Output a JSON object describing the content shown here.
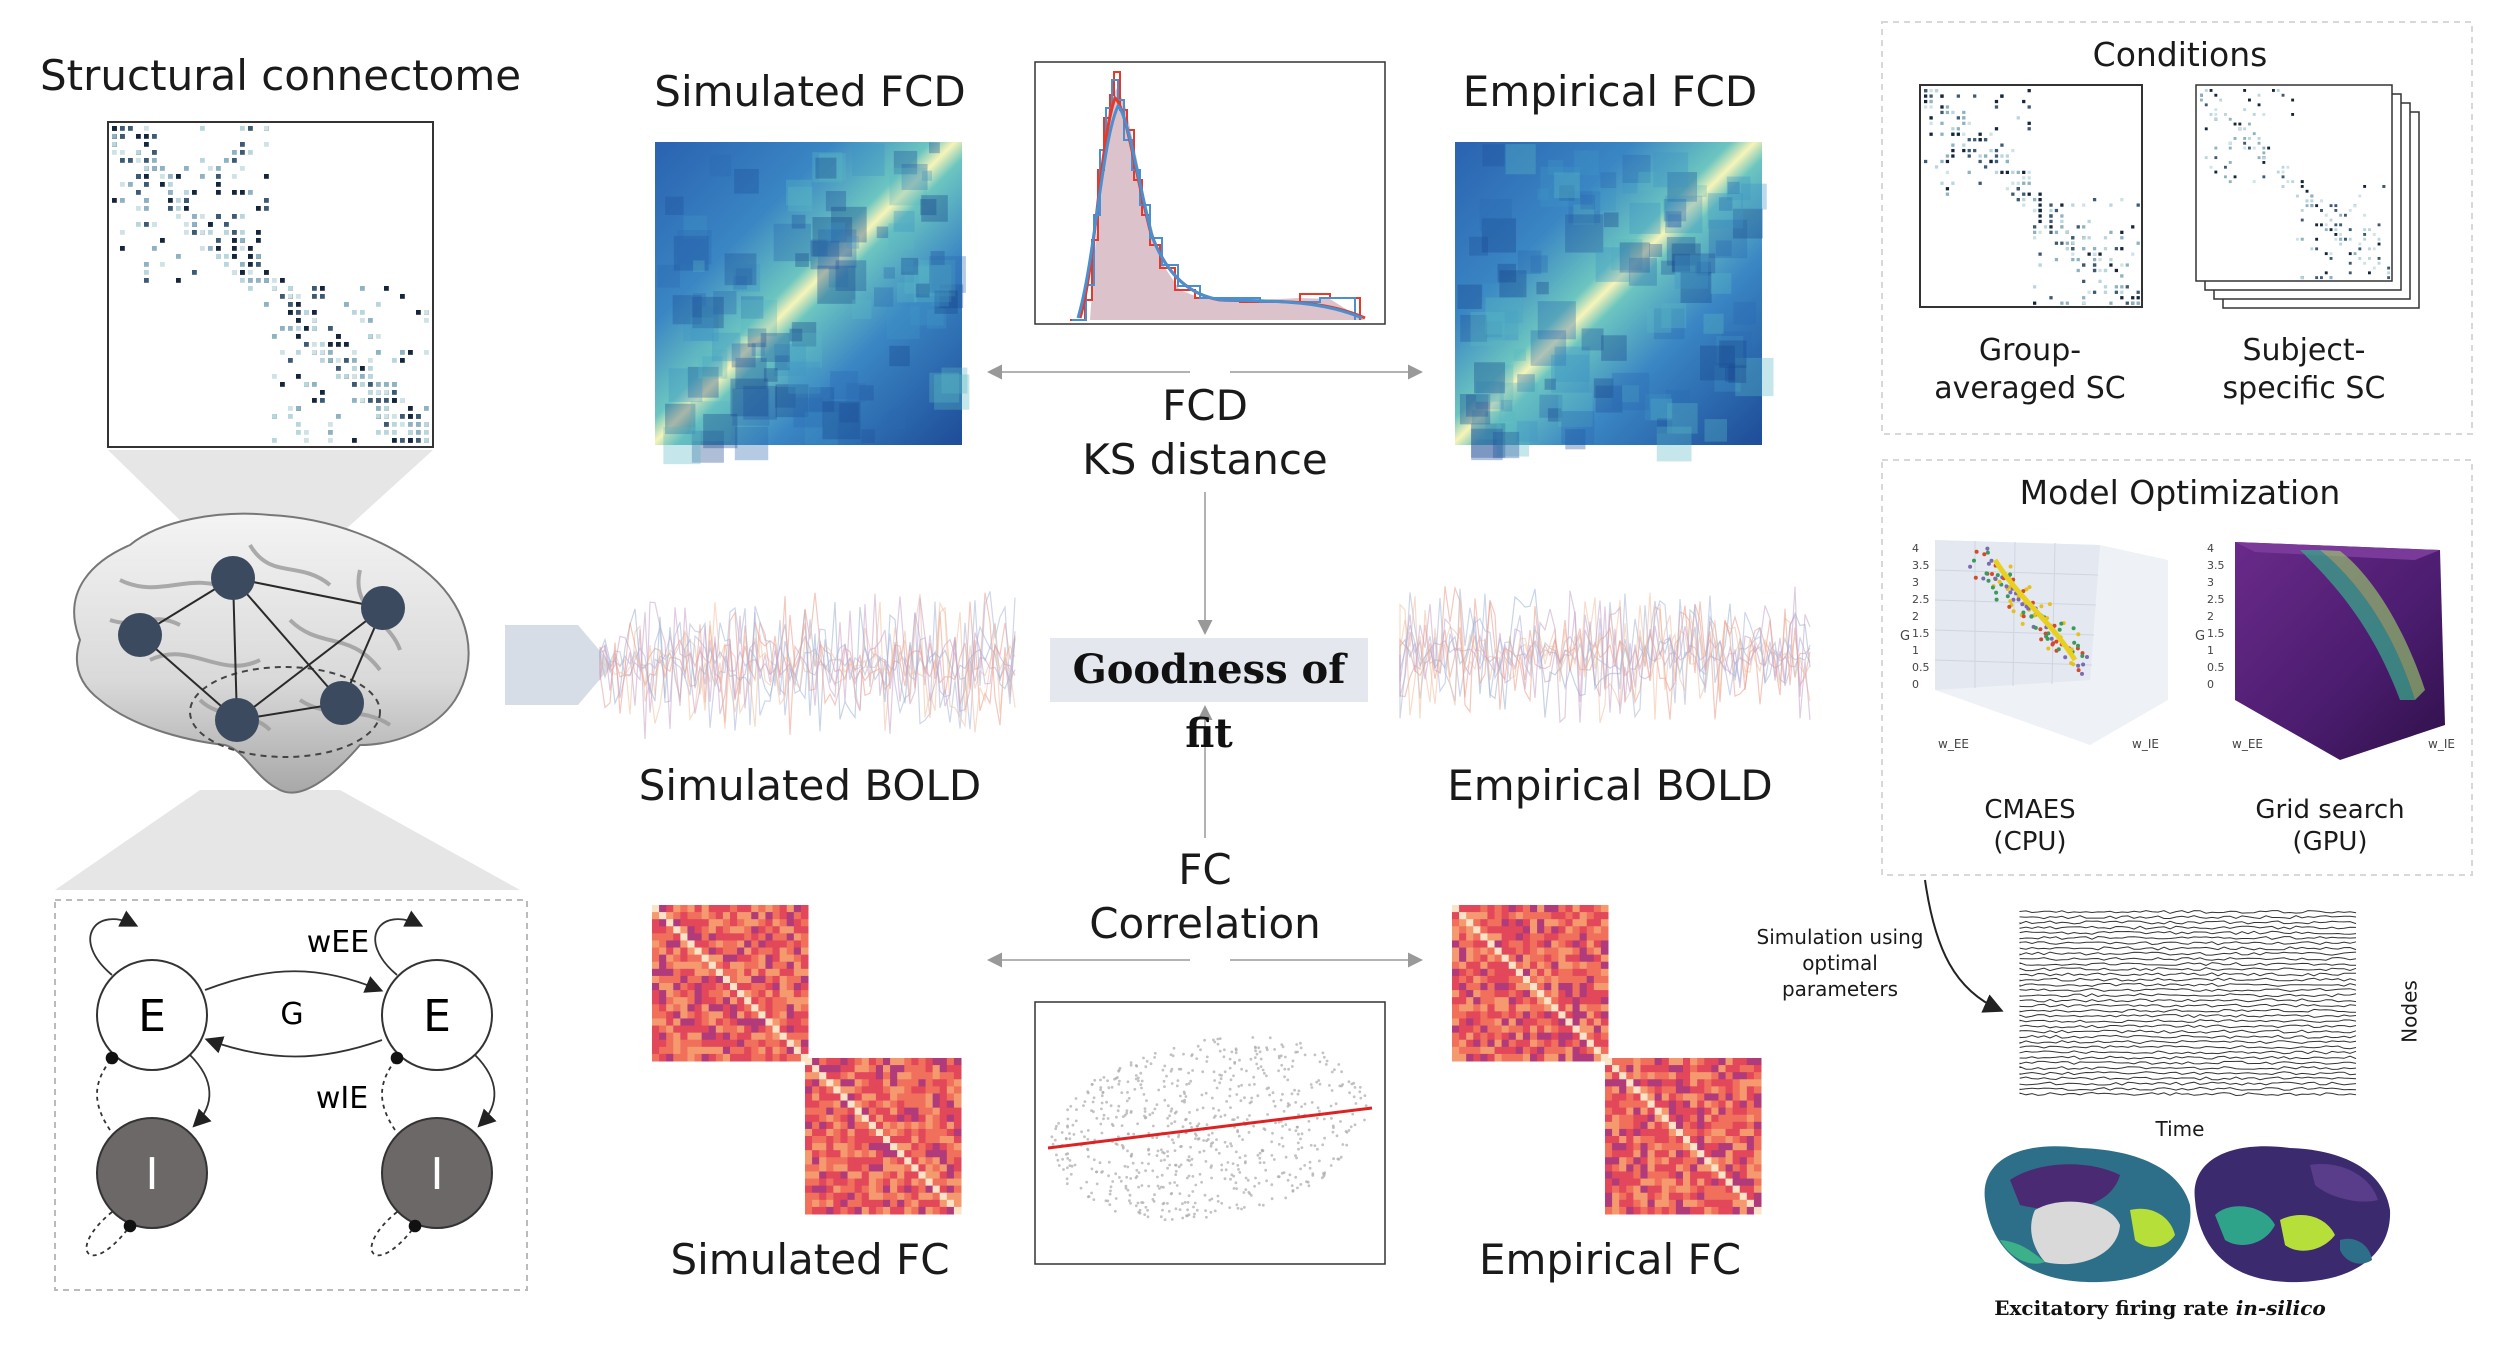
{
  "structural": {
    "title": "Structural connectome"
  },
  "fcd": {
    "simulated_title": "Simulated FCD",
    "empirical_title": "Empirical FCD",
    "metric_line1": "FCD",
    "metric_line2": "KS distance"
  },
  "bold": {
    "simulated_title": "Simulated BOLD",
    "empirical_title": "Empirical BOLD"
  },
  "goodness": "Goodness of fit",
  "fc": {
    "simulated_title": "Simulated FC",
    "empirical_title": "Empirical FC",
    "metric_line1": "FC",
    "metric_line2": "Correlation"
  },
  "motif": {
    "node_e_left": "E",
    "node_e_right": "E",
    "node_i_left": "I",
    "node_i_right": "I",
    "label_wee": "wEE",
    "label_g": "G",
    "label_wie": "wIE"
  },
  "conditions": {
    "title": "Conditions",
    "group_line1": "Group-",
    "group_line2": "averaged SC",
    "subject_line1": "Subject-",
    "subject_line2": "specific SC"
  },
  "optimization": {
    "title": "Model Optimization",
    "cmaes_line1": "CMAES",
    "cmaes_line2": "(CPU)",
    "grid_line1": "Grid search",
    "grid_line2": "(GPU)",
    "axis_g": "G",
    "axis_wee": "w_EE",
    "axis_wie": "w_IE",
    "ticks": [
      "4",
      "3.5",
      "3",
      "2.5",
      "2",
      "1.5",
      "1",
      "0.5",
      "0"
    ]
  },
  "simulation": {
    "line1": "Simulation using",
    "line2": "optimal",
    "line3": "parameters",
    "ylabel": "Nodes",
    "xlabel": "Time"
  },
  "caption": {
    "prefix": "Excitatory firing rate ",
    "emph": "in-silico"
  },
  "colors": {
    "node_dark": "#3b4a5e",
    "fcd_high": "#f7f4b8",
    "fcd_low": "#1f4f9a",
    "fc_high": "#f8d4b0",
    "fc_low": "#d6304a",
    "hist_red": "#e33a2c",
    "hist_blue": "#4a8fd0",
    "fit_line": "#dd2222",
    "label_bg": "#e4e7ed"
  }
}
